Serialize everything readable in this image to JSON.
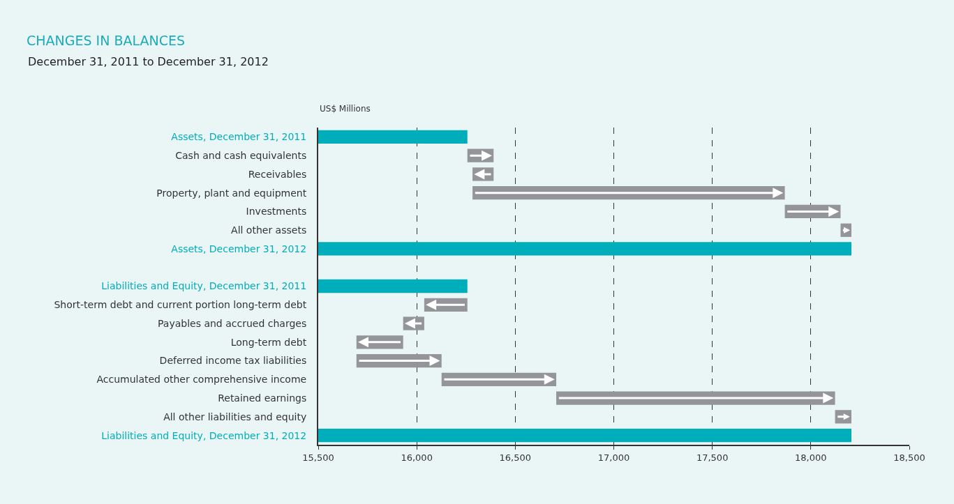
{
  "chart_data": {
    "type": "bar",
    "orientation": "horizontal",
    "title": "CHANGES IN BALANCES",
    "subtitle": "December 31, 2011 to December 31, 2012",
    "xlabel": "US$ Millions",
    "categories": [
      "Assets, December 31, 2011",
      "Cash and cash equivalents",
      "Receivables",
      "Property, plant and equipment",
      "Investments",
      "All other assets",
      "Assets, December 31, 2012",
      null,
      "Liabilities and Equity, December 31, 2011",
      "Short-term debt and current portion long-term debt",
      "Payables and accrued charges",
      "Long-term debt",
      "Deferred income tax liabilities",
      "Accumulated other comprehensive income",
      "Retained earnings",
      "All other liabilities and equity",
      "Liabilities and Equity, December 31, 2012"
    ],
    "series": [
      {
        "color": "#00aebb",
        "values": [
          16257,
          null,
          null,
          null,
          null,
          null,
          18206,
          null,
          16257,
          null,
          null,
          null,
          null,
          null,
          null,
          null,
          18206
        ]
      },
      {
        "color": "#939598",
        "values": [
          null,
          133,
          -107,
          1585,
          283,
          55,
          null,
          null,
          null,
          -219,
          -107,
          -237,
          432,
          582,
          1415,
          83,
          null
        ],
        "base": [
          null,
          16257,
          16390,
          16283,
          17868,
          18151,
          null,
          null,
          null,
          16257,
          16038,
          15931,
          15694,
          16126,
          16708,
          18123,
          null
        ]
      }
    ],
    "xlim": [
      15500,
      18500
    ],
    "xticks": [
      {
        "value": 15500,
        "label": "15,500"
      },
      {
        "value": 16000,
        "label": "16,000"
      },
      {
        "value": 16500,
        "label": "16,500"
      },
      {
        "value": 17000,
        "label": "17,000"
      },
      {
        "value": 17500,
        "label": "17,500"
      },
      {
        "value": 18000,
        "label": "18,000"
      },
      {
        "value": 18500,
        "label": "18,500"
      }
    ],
    "grid": "x",
    "line_style": "dashed"
  }
}
